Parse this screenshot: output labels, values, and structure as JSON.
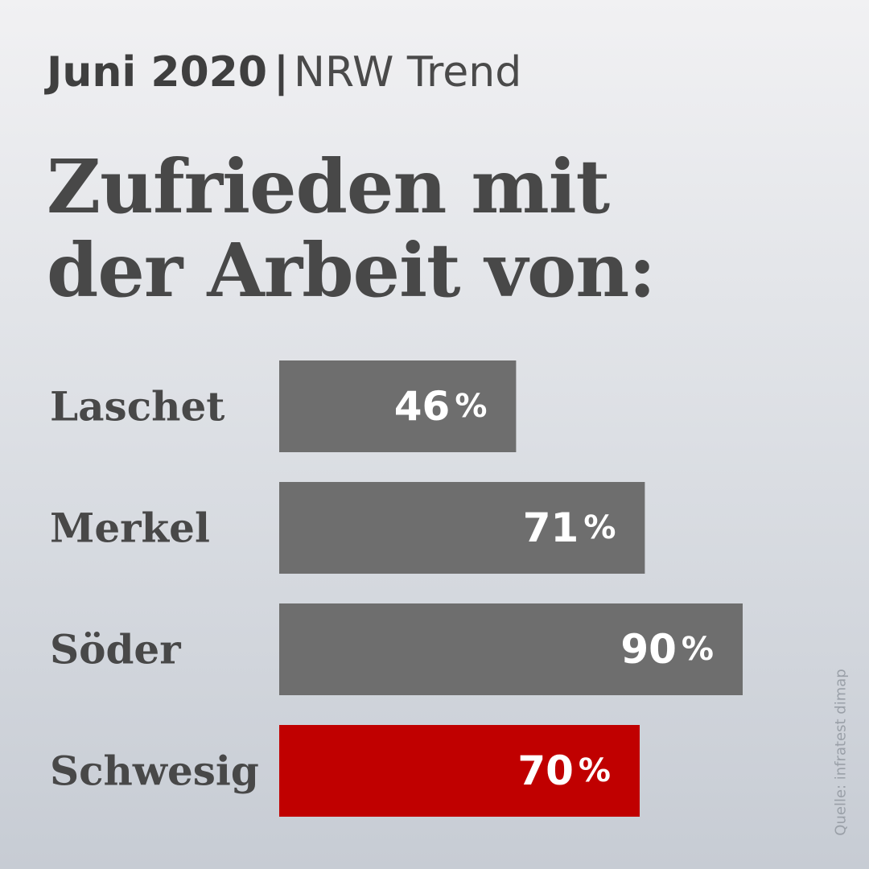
{
  "header": {
    "date": "Juni 2020",
    "separator": "|",
    "subtitle": "NRW Trend"
  },
  "title": {
    "line1": "Zufrieden mit",
    "line2": "der Arbeit von:"
  },
  "source": "Quelle: infratest dimap",
  "colors": {
    "default_bar": "#6e6e6e",
    "highlight_bar": "#c00000",
    "label_text": "#484848",
    "value_text": "#ffffff"
  },
  "chart_data": {
    "type": "bar",
    "orientation": "horizontal",
    "categories": [
      "Laschet",
      "Merkel",
      "Söder",
      "Schwesig"
    ],
    "values": [
      46,
      71,
      90,
      70
    ],
    "value_labels": [
      "46",
      "71",
      "90",
      "70"
    ],
    "value_suffix": "%",
    "highlight_index": 3,
    "xlim": [
      0,
      100
    ],
    "grid": false,
    "legend": "none"
  }
}
